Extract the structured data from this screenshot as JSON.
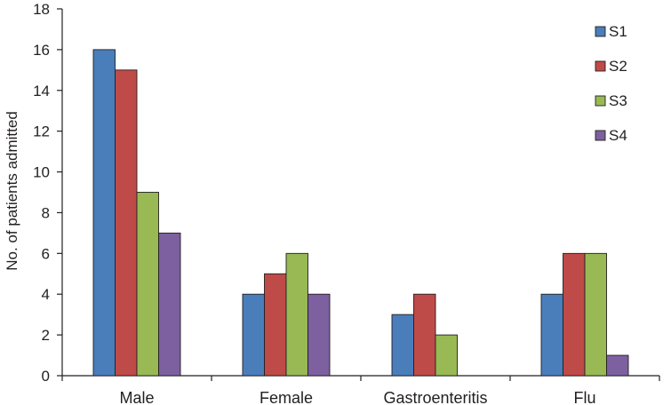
{
  "chart_data": {
    "type": "bar",
    "title": "",
    "xlabel": "",
    "ylabel": "No. of patients admitted",
    "ylim": [
      0,
      18
    ],
    "yticks": [
      0,
      2,
      4,
      6,
      8,
      10,
      12,
      14,
      16,
      18
    ],
    "categories": [
      "Male",
      "Female",
      "Gastroenteritis",
      "Flu"
    ],
    "series": [
      {
        "name": "S1",
        "color": "#4a7ebb",
        "values": [
          16,
          4,
          3,
          4
        ]
      },
      {
        "name": "S2",
        "color": "#be4b48",
        "values": [
          15,
          5,
          4,
          6
        ]
      },
      {
        "name": "S3",
        "color": "#98b954",
        "values": [
          9,
          6,
          2,
          6
        ]
      },
      {
        "name": "S4",
        "color": "#7d60a0",
        "values": [
          7,
          4,
          0,
          1
        ]
      }
    ],
    "legend_position": "top-right",
    "grid": false
  }
}
